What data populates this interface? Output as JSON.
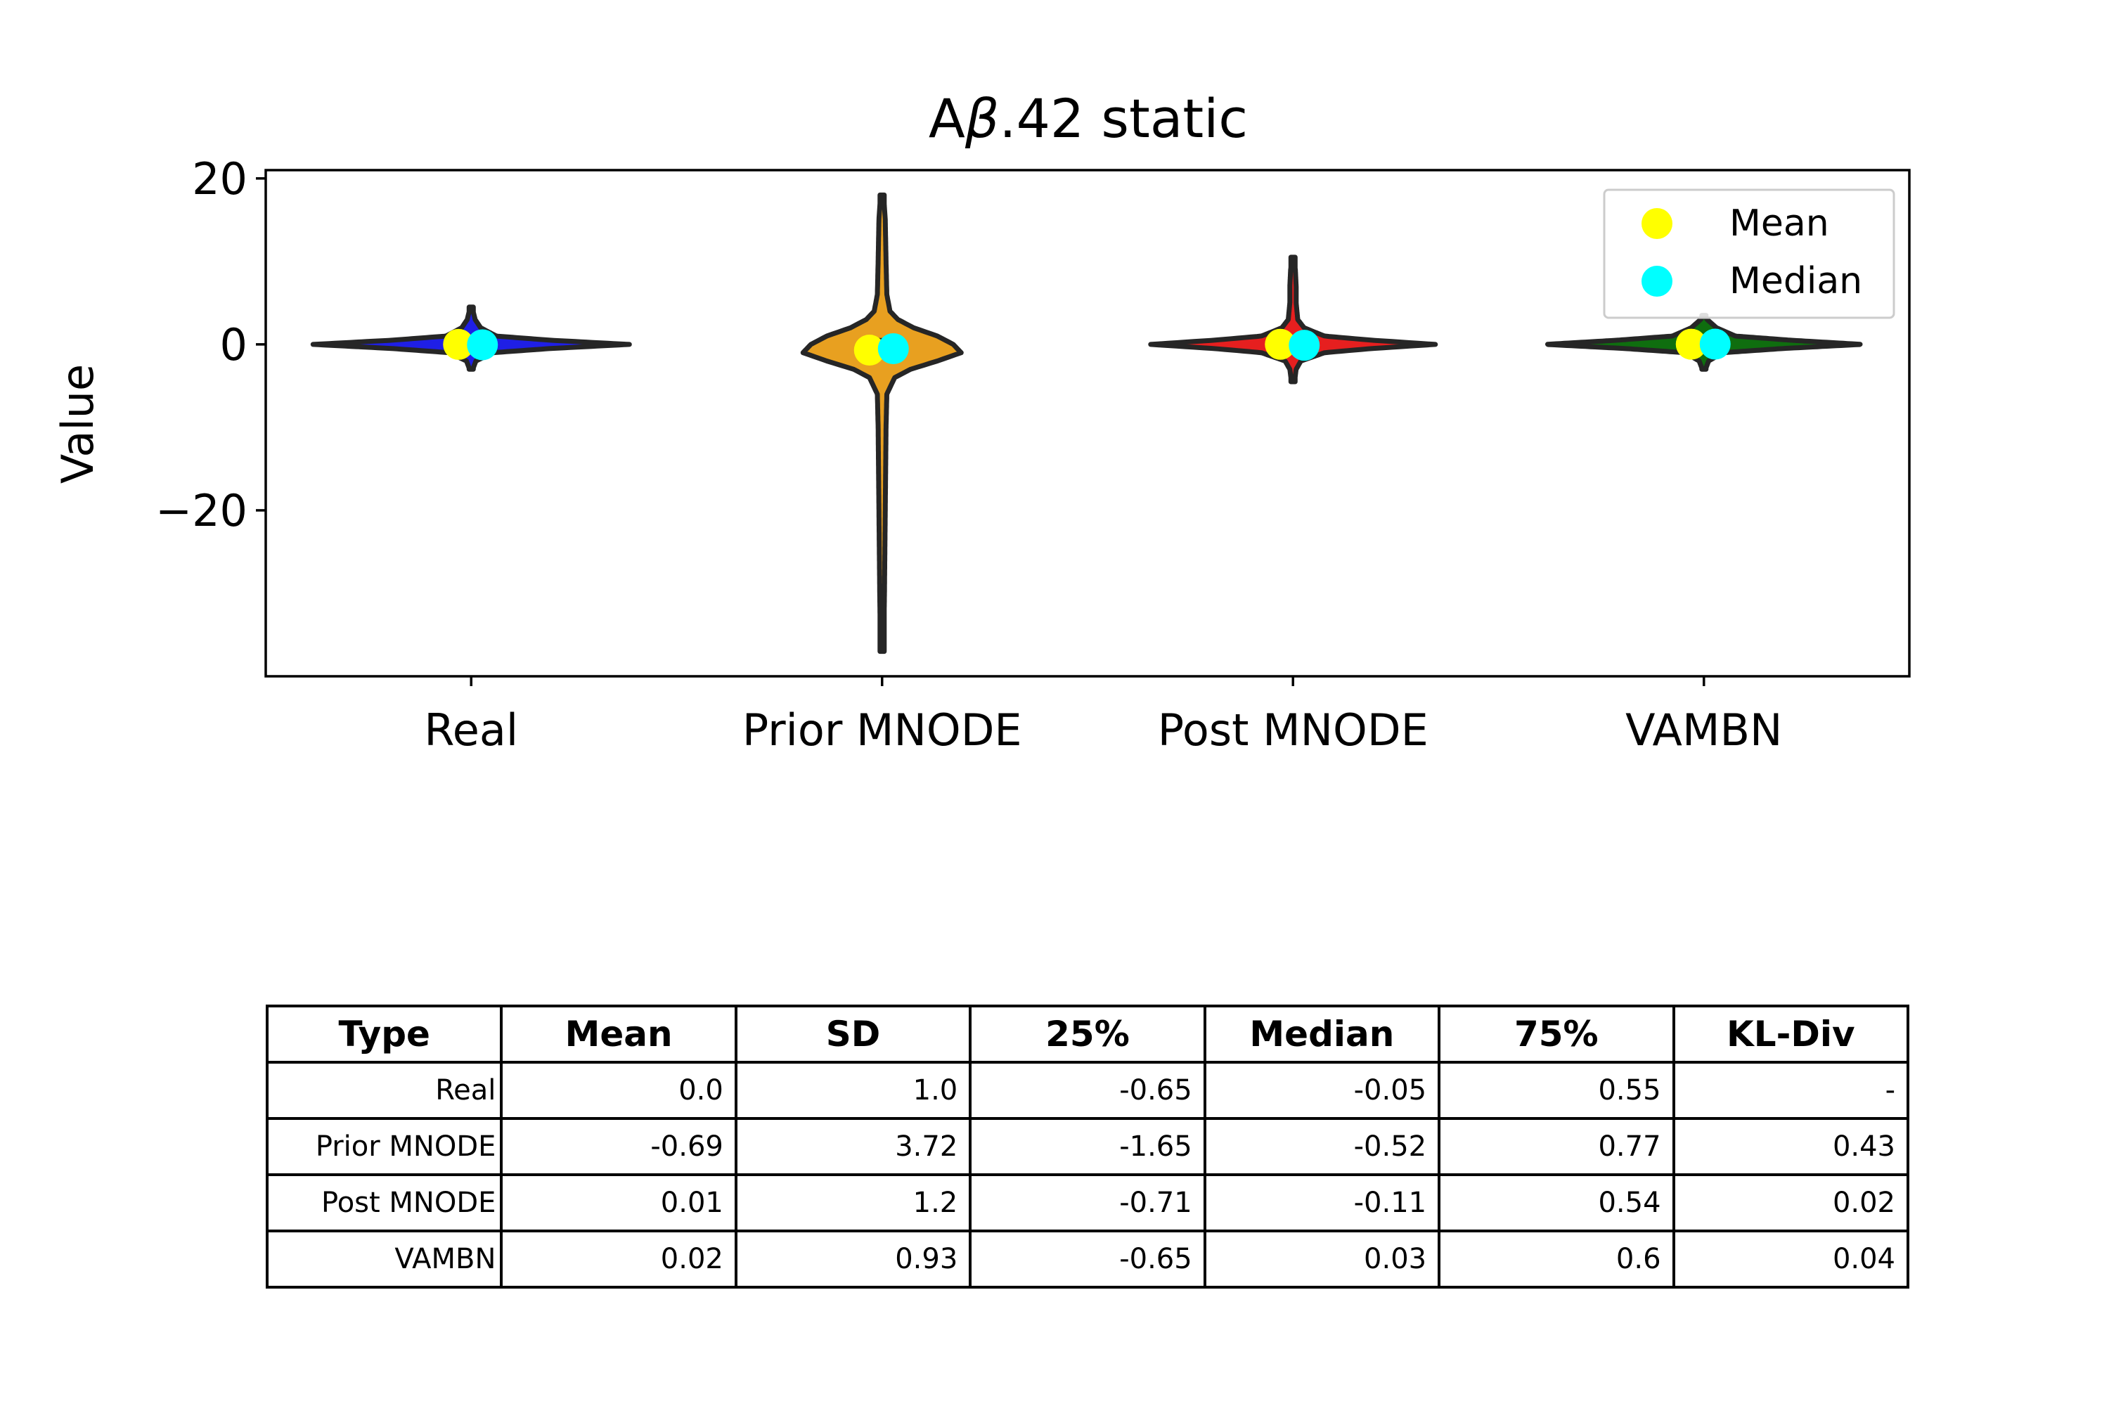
{
  "chart_data": {
    "type": "violin",
    "title": "Aβ.42 static",
    "title_main": "A",
    "title_symbol": "β",
    "title_rest": ".42 static",
    "ylabel": "Value",
    "xlabel": "",
    "ylim": [
      -40,
      21
    ],
    "yticks": [
      20,
      0,
      -20
    ],
    "ytick_labels": [
      "20",
      "0",
      "−20"
    ],
    "categories": [
      "Real",
      "Prior MNODE",
      "Post MNODE",
      "VAMBN"
    ],
    "colors": [
      "#1f1fe6",
      "#e8a020",
      "#e61f1f",
      "#0f6e0f"
    ],
    "grid": false,
    "legend": {
      "placement": "top-right",
      "entries": [
        {
          "label": "Mean",
          "color": "#ffff00"
        },
        {
          "label": "Median",
          "color": "#00ffff"
        }
      ]
    },
    "series": [
      {
        "category": "Real",
        "min": -3,
        "max": 4.5,
        "q1": -0.65,
        "median": -0.05,
        "q3": 0.55,
        "mean": 0.0,
        "density": [
          [
            -3,
            0.01
          ],
          [
            -2,
            0.03
          ],
          [
            -1,
            0.14
          ],
          [
            -0.5,
            0.5
          ],
          [
            0,
            1.0
          ],
          [
            0.5,
            0.5
          ],
          [
            1,
            0.16
          ],
          [
            2,
            0.06
          ],
          [
            3,
            0.025
          ],
          [
            4,
            0.012
          ],
          [
            4.5,
            0.005
          ]
        ]
      },
      {
        "category": "Prior MNODE",
        "min": -37,
        "max": 18,
        "q1": -1.65,
        "median": -0.52,
        "q3": 0.77,
        "mean": -0.69,
        "density": [
          [
            -37,
            0.01
          ],
          [
            -30,
            0.015
          ],
          [
            -20,
            0.02
          ],
          [
            -10,
            0.025
          ],
          [
            -6,
            0.03
          ],
          [
            -4,
            0.08
          ],
          [
            -3,
            0.18
          ],
          [
            -2,
            0.35
          ],
          [
            -1,
            0.5
          ],
          [
            0,
            0.45
          ],
          [
            1,
            0.35
          ],
          [
            2,
            0.2
          ],
          [
            3,
            0.1
          ],
          [
            4,
            0.05
          ],
          [
            6,
            0.03
          ],
          [
            10,
            0.025
          ],
          [
            15,
            0.02
          ],
          [
            18,
            0.01
          ]
        ]
      },
      {
        "category": "Post MNODE",
        "min": -4.5,
        "max": 10.5,
        "q1": -0.71,
        "median": -0.11,
        "q3": 0.54,
        "mean": 0.01,
        "density": [
          [
            -4.5,
            0.01
          ],
          [
            -3,
            0.02
          ],
          [
            -2,
            0.05
          ],
          [
            -1,
            0.2
          ],
          [
            -0.5,
            0.5
          ],
          [
            0,
            0.9
          ],
          [
            0.5,
            0.5
          ],
          [
            1,
            0.2
          ],
          [
            2,
            0.07
          ],
          [
            3,
            0.03
          ],
          [
            5,
            0.02
          ],
          [
            7,
            0.02
          ],
          [
            9,
            0.015
          ],
          [
            10.5,
            0.005
          ]
        ]
      },
      {
        "category": "VAMBN",
        "min": -3,
        "max": 3.5,
        "q1": -0.65,
        "median": 0.03,
        "q3": 0.6,
        "mean": 0.02,
        "density": [
          [
            -3,
            0.01
          ],
          [
            -2,
            0.03
          ],
          [
            -1,
            0.12
          ],
          [
            -0.5,
            0.5
          ],
          [
            0,
            1.0
          ],
          [
            0.5,
            0.55
          ],
          [
            1,
            0.2
          ],
          [
            2,
            0.08
          ],
          [
            3,
            0.02
          ],
          [
            3.5,
            0.005
          ]
        ]
      }
    ]
  },
  "table": {
    "headers": [
      "Type",
      "Mean",
      "SD",
      "25%",
      "Median",
      "75%",
      "KL-Div"
    ],
    "rows": [
      [
        "Real",
        "0.0",
        "1.0",
        "-0.65",
        "-0.05",
        "0.55",
        "-"
      ],
      [
        "Prior MNODE",
        "-0.69",
        "3.72",
        "-1.65",
        "-0.52",
        "0.77",
        "0.43"
      ],
      [
        "Post MNODE",
        "0.01",
        "1.2",
        "-0.71",
        "-0.11",
        "0.54",
        "0.02"
      ],
      [
        "VAMBN",
        "0.02",
        "0.93",
        "-0.65",
        "0.03",
        "0.6",
        "0.04"
      ]
    ]
  }
}
